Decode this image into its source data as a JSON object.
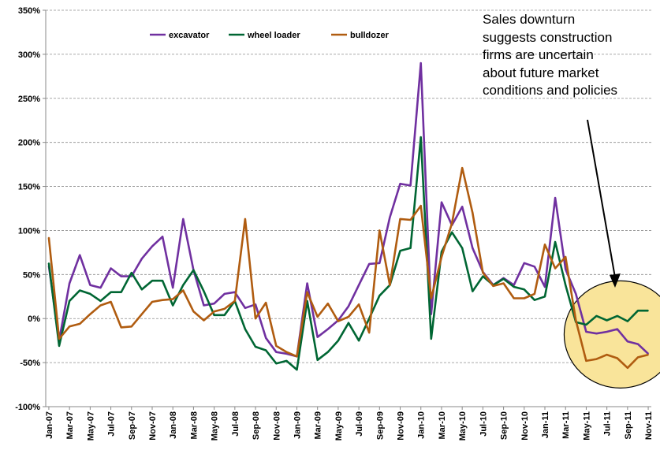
{
  "chart_data": {
    "type": "line",
    "x": [
      "Jan-07",
      "Feb-07",
      "Mar-07",
      "Apr-07",
      "May-07",
      "Jun-07",
      "Jul-07",
      "Aug-07",
      "Sep-07",
      "Oct-07",
      "Nov-07",
      "Dec-07",
      "Jan-08",
      "Feb-08",
      "Mar-08",
      "Apr-08",
      "May-08",
      "Jun-08",
      "Jul-08",
      "Aug-08",
      "Sep-08",
      "Oct-08",
      "Nov-08",
      "Dec-08",
      "Jan-09",
      "Feb-09",
      "Mar-09",
      "Apr-09",
      "May-09",
      "Jun-09",
      "Jul-09",
      "Aug-09",
      "Sep-09",
      "Oct-09",
      "Nov-09",
      "Dec-09",
      "Jan-10",
      "Feb-10",
      "Mar-10",
      "Apr-10",
      "May-10",
      "Jun-10",
      "Jul-10",
      "Aug-10",
      "Sep-10",
      "Oct-10",
      "Nov-10",
      "Dec-10",
      "Jan-11",
      "Feb-11",
      "Mar-11",
      "Apr-11",
      "May-11",
      "Jun-11",
      "Jul-11",
      "Aug-11",
      "Sep-11",
      "Oct-11",
      "Nov-11"
    ],
    "x_tick_labels": [
      "Jan-07",
      "Mar-07",
      "May-07",
      "Jul-07",
      "Sep-07",
      "Nov-07",
      "Jan-08",
      "Mar-08",
      "May-08",
      "Jul-08",
      "Sep-08",
      "Nov-08",
      "Jan-09",
      "Mar-09",
      "May-09",
      "Jul-09",
      "Sep-09",
      "Nov-09",
      "Jan-10",
      "Mar-10",
      "May-10",
      "Jul-10",
      "Sep-10",
      "Nov-10",
      "Jan-11",
      "Mar-11",
      "May-11",
      "Jul-11",
      "Sep-11",
      "Nov-11"
    ],
    "y_tick_labels": [
      "350%",
      "300%",
      "250%",
      "200%",
      "150%",
      "100%",
      "50%",
      "0%",
      "-50%",
      "-100%"
    ],
    "ylim": [
      -100,
      350
    ],
    "y_unit": "%",
    "grid": "horizontal-dashed",
    "legend_position": "top-center",
    "series": [
      {
        "name": "excavator",
        "color": "#7030a0",
        "values": [
          60,
          -25,
          40,
          72,
          38,
          35,
          57,
          48,
          48,
          68,
          82,
          93,
          35,
          113,
          55,
          15,
          17,
          28,
          30,
          12,
          16,
          -22,
          -38,
          -40,
          -43,
          40,
          -21,
          -12,
          -2,
          14,
          38,
          62,
          63,
          115,
          153,
          151,
          290,
          5,
          132,
          106,
          127,
          80,
          53,
          38,
          46,
          38,
          63,
          59,
          36,
          137,
          56,
          28,
          -15,
          -17,
          -15,
          -12,
          -26,
          -29,
          -40
        ]
      },
      {
        "name": "wheel loader",
        "color": "#006633",
        "values": [
          63,
          -31,
          20,
          32,
          28,
          20,
          30,
          30,
          52,
          33,
          43,
          43,
          15,
          38,
          55,
          31,
          4,
          4,
          20,
          -12,
          -32,
          -36,
          -51,
          -48,
          -58,
          20,
          -47,
          -38,
          -25,
          -5,
          -25,
          0,
          26,
          38,
          77,
          80,
          206,
          -23,
          76,
          98,
          80,
          31,
          48,
          38,
          45,
          36,
          33,
          21,
          25,
          87,
          38,
          -4,
          -7,
          3,
          -2,
          3,
          -3,
          9,
          9
        ]
      },
      {
        "name": "bulldozer",
        "color": "#b05c10",
        "values": [
          92,
          -23,
          -9,
          -6,
          5,
          15,
          19,
          -10,
          -9,
          5,
          19,
          21,
          22,
          32,
          8,
          -2,
          8,
          11,
          20,
          113,
          0,
          18,
          -31,
          -38,
          -43,
          30,
          2,
          17,
          -3,
          2,
          16,
          -16,
          100,
          38,
          113,
          112,
          128,
          23,
          70,
          108,
          171,
          120,
          52,
          37,
          40,
          23,
          23,
          28,
          84,
          57,
          70,
          -2,
          -48,
          -46,
          -41,
          -45,
          -56,
          -44,
          -41
        ]
      }
    ],
    "annotation": {
      "lines": [
        "Sales downturn",
        "suggests construction",
        "firms are uncertain",
        "about future market",
        "conditions and policies"
      ],
      "highlight": "circle around May-11 to Nov-11",
      "highlight_fill": "#f9e49a"
    }
  }
}
